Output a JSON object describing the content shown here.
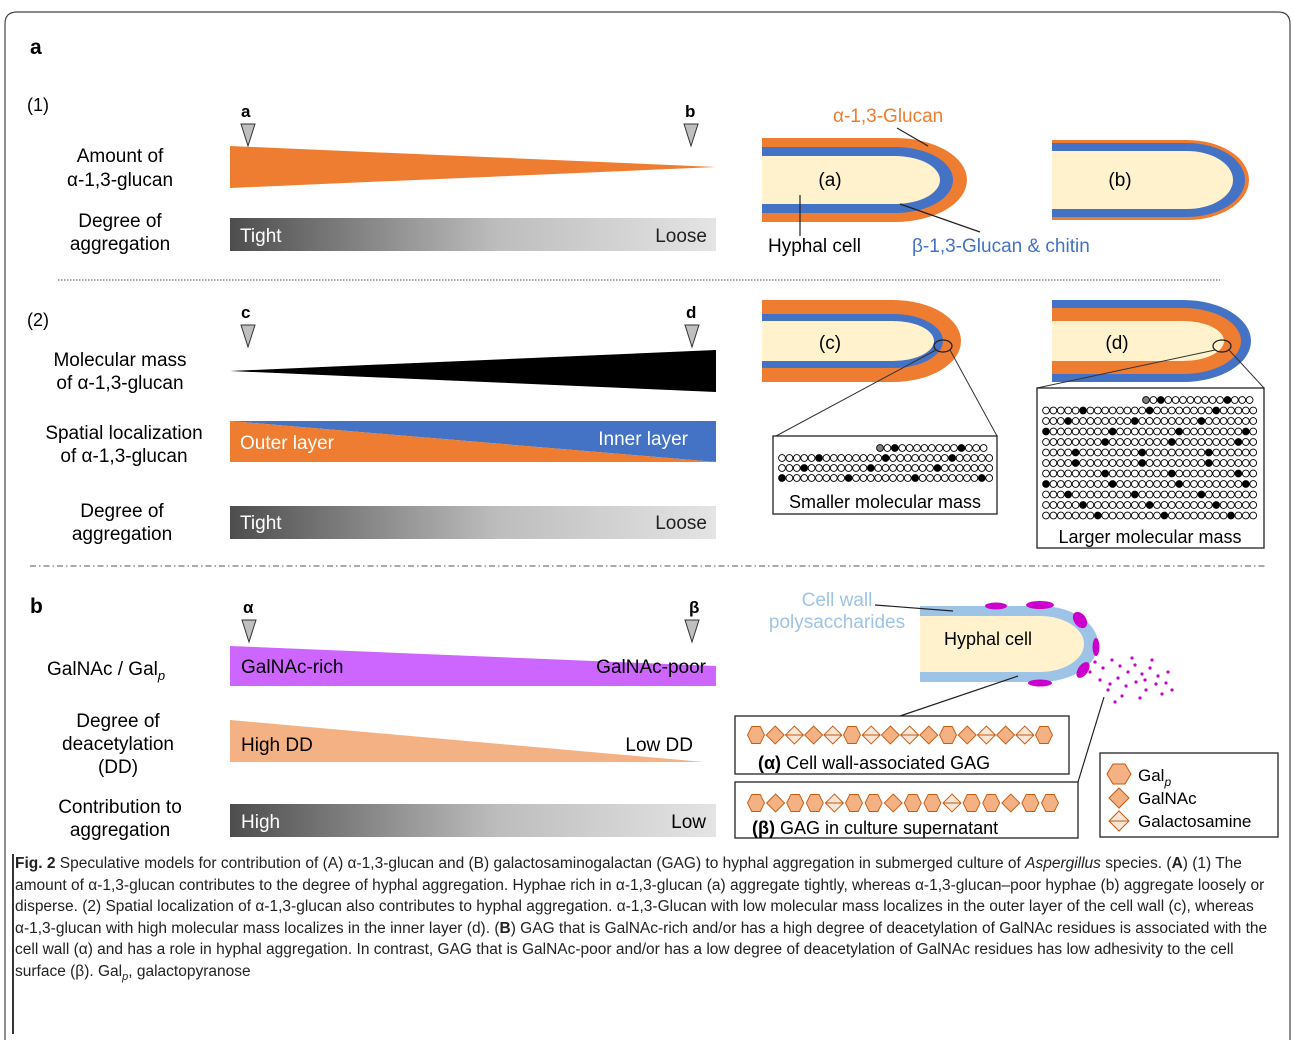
{
  "panel_a": {
    "label": "a",
    "sec1": {
      "num": "(1)",
      "mark_a": "a",
      "mark_b": "b",
      "amount_l1": "Amount of",
      "amount_l2": "α-1,3-glucan",
      "agg_l1": "Degree of",
      "agg_l2": "aggregation",
      "tight": "Tight",
      "loose": "Loose",
      "hypha_a": "(a)",
      "hypha_b": "(b)",
      "alpha_glucan": "α-1,3-Glucan",
      "hyphal_cell": "Hyphal cell",
      "beta_glucan": "β-1,3-Glucan & chitin"
    },
    "sec2": {
      "num": "(2)",
      "mark_c": "c",
      "mark_d": "d",
      "mass_l1": "Molecular mass",
      "mass_l2": "of α-1,3-glucan",
      "loc_l1": "Spatial localization",
      "loc_l2": "of α-1,3-glucan",
      "outer": "Outer layer",
      "inner": "Inner layer",
      "agg_l1": "Degree of",
      "agg_l2": "aggregation",
      "tight": "Tight",
      "loose": "Loose",
      "hypha_c": "(c)",
      "hypha_d": "(d)",
      "smaller": "Smaller molecular mass",
      "larger": "Larger molecular mass"
    }
  },
  "panel_b": {
    "label": "b",
    "mark_alpha": "α",
    "mark_beta": "β",
    "galnac_gal": "GalNAc / Gal",
    "galnac_sub": "p",
    "rich": "GalNAc-rich",
    "poor": "GalNAc-poor",
    "dd_l1": "Degree of",
    "dd_l2": "deacetylation",
    "dd_l3": "(DD)",
    "high_dd": "High DD",
    "low_dd": "Low DD",
    "contrib_l1": "Contribution to",
    "contrib_l2": "aggregation",
    "high": "High",
    "low": "Low",
    "cell_wall_l1": "Cell wall",
    "cell_wall_l2": "polysaccharides",
    "hyphal_cell": "Hyphal cell",
    "gag_alpha_sym": "(α)",
    "gag_alpha": " Cell wall-associated GAG",
    "gag_beta_sym": "(β)",
    "gag_beta": " GAG in culture supernatant",
    "legend_gal": "Gal",
    "legend_gal_sub": "p",
    "legend_galnac": "GalNAc",
    "legend_galactosamine": "Galactosamine"
  },
  "caption": {
    "fig": "Fig. 2",
    "t1": "  Speculative models for contribution of (A) α-1,3-glucan and (B) galactosaminogalactan (GAG) to hyphal aggregation in submerged culture of ",
    "t1_italic": "Aspergillus",
    "t2": " species. (",
    "A": "A",
    "t3": ") (1) The amount of α-1,3-glucan contributes to the degree of hyphal aggregation. Hyphae rich in α-1,3-glucan (a) aggregate tightly, whereas α-1,3-glucan–poor hyphae (b) aggregate loosely or disperse. (2) Spatial localization of α-1,3-glucan also contributes to hyphal aggregation. α-1,3-Glucan with low molecular mass localizes in the outer layer of the cell wall (c), whereas α-1,3-glucan with high molecular mass localizes in the inner layer (d). (",
    "B": "B",
    "t4": ") GAG that is GalNAc-rich and/or has a high degree of deacetylation of GalNAc residues is associated with the cell wall (α) and has a role in hyphal aggregation. In contrast, GAG that is GalNAc-poor and/or has a low degree of deacetylation of GalNAc residues has low adhesivity to the cell surface (β). Gal",
    "t4_sub": "p",
    "t5": ", galactopyranose"
  },
  "colors": {
    "orange": "#ee7d31",
    "blue": "#4472c4",
    "cream": "#fff2cc",
    "purple": "#cc66ff",
    "peach": "#f4b183",
    "lightblue": "#9dc3e6",
    "magenta": "#cc00cc"
  }
}
